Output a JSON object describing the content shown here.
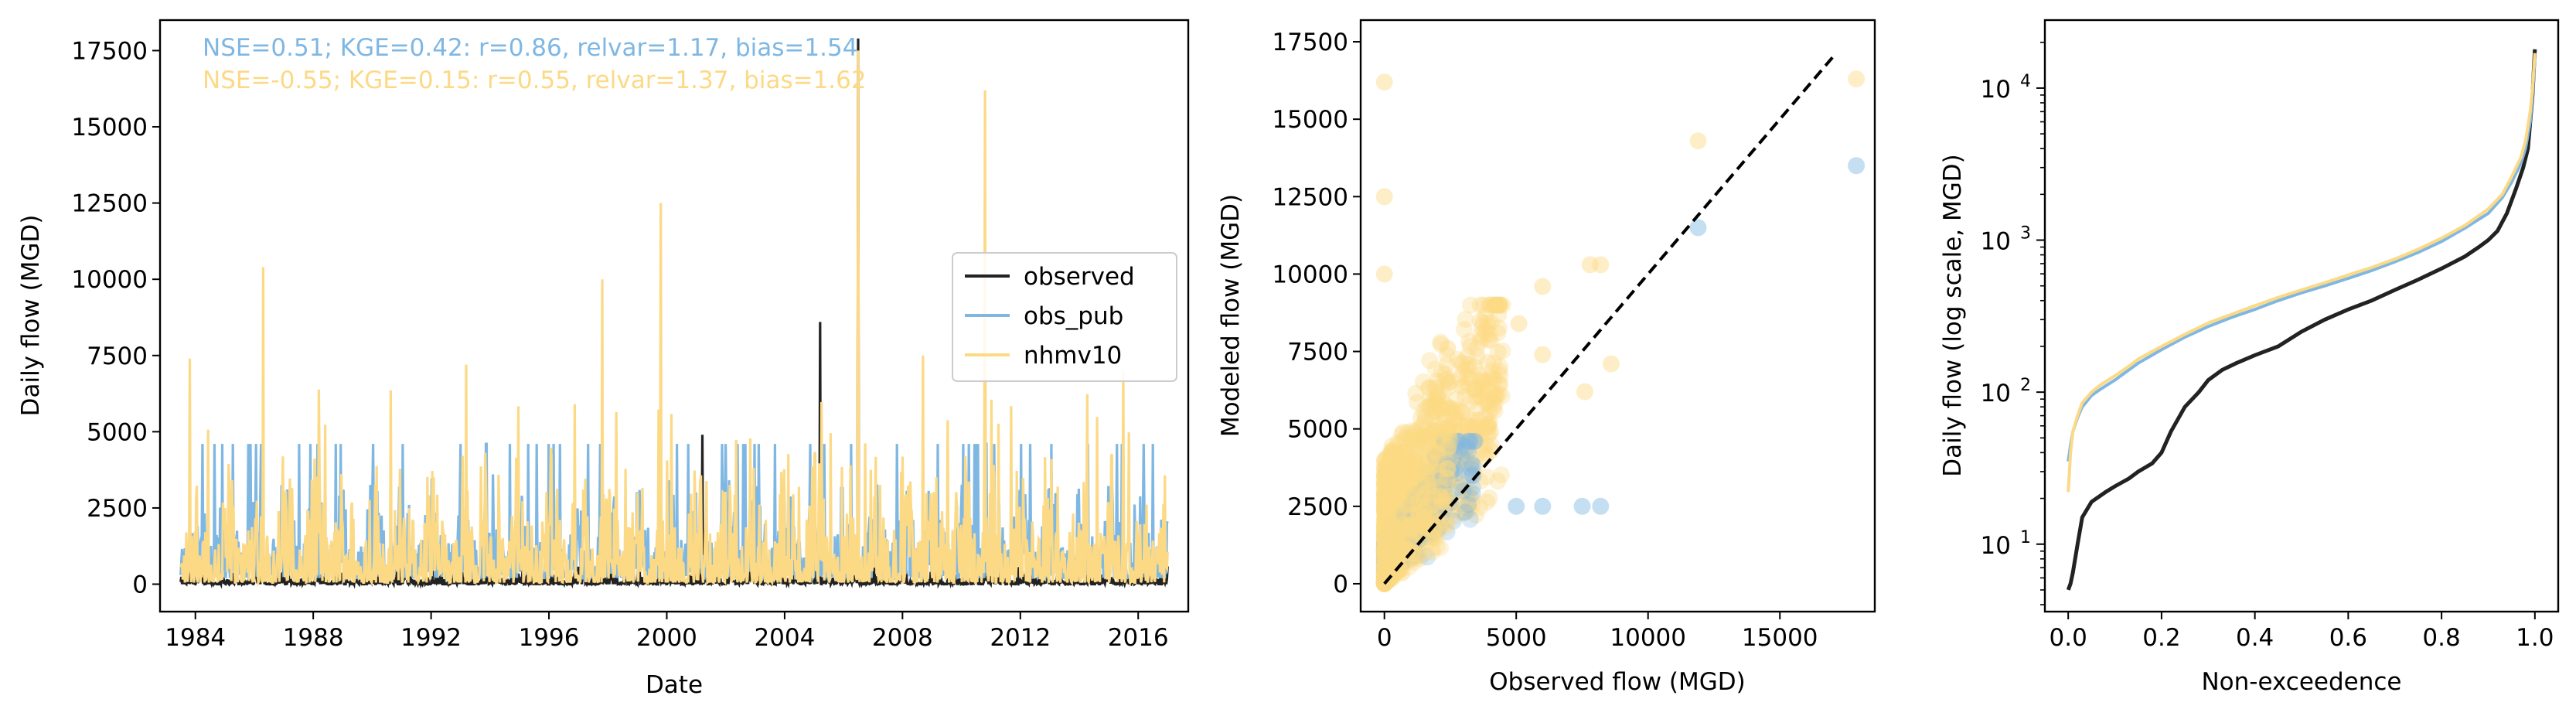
{
  "colors": {
    "observed": "#222222",
    "obs_pub": "#7fb7e3",
    "nhmv10": "#fcd985",
    "axis": "#000000",
    "one_to_one": "#000000"
  },
  "chart_data": [
    {
      "type": "line",
      "title": "",
      "xlabel": "Date",
      "ylabel": "Daily flow (MGD)",
      "xlim": [
        1982.8,
        2017.7
      ],
      "ylim": [
        -900,
        18500
      ],
      "x_ticks": [
        "1984",
        "1988",
        "1992",
        "1996",
        "2000",
        "2004",
        "2008",
        "2012",
        "2016"
      ],
      "y_ticks": [
        "0",
        "2500",
        "5000",
        "7500",
        "10000",
        "12500",
        "15000",
        "17500"
      ],
      "x_tick_values": [
        1984,
        1988,
        1992,
        1996,
        2000,
        2004,
        2008,
        2012,
        2016
      ],
      "y_tick_values": [
        0,
        2500,
        5000,
        7500,
        10000,
        12500,
        15000,
        17500
      ],
      "annotations": [
        {
          "text": "NSE=0.51; KGE=0.42: r=0.86, relvar=1.17, bias=1.54",
          "series": "obs_pub"
        },
        {
          "text": "NSE=-0.55; KGE=0.15: r=0.55, relvar=1.37, bias=1.62",
          "series": "nhmv10"
        }
      ],
      "legend": {
        "position": "center-right",
        "entries": [
          "observed",
          "obs_pub",
          "nhmv10"
        ]
      },
      "grid": false,
      "x_range": [
        1983.5,
        2017.0
      ],
      "series": [
        {
          "name": "observed",
          "typical_range": [
            0,
            400
          ],
          "peaks": [
            [
              2005.2,
              8600
            ],
            [
              2006.5,
              17900
            ],
            [
              2001.2,
              4900
            ]
          ]
        },
        {
          "name": "obs_pub",
          "typical_range": [
            200,
            2500
          ],
          "cap": 4600
        },
        {
          "name": "nhmv10",
          "typical_range": [
            50,
            3000
          ],
          "peaks": [
            [
              1983.8,
              7400
            ],
            [
              1986.3,
              10400
            ],
            [
              1999.8,
              12500
            ],
            [
              2006.5,
              17500
            ],
            [
              2010.8,
              16200
            ],
            [
              1997.8,
              10000
            ],
            [
              1993.2,
              7200
            ],
            [
              2008.7,
              7500
            ],
            [
              2015.5,
              7000
            ]
          ]
        }
      ]
    },
    {
      "type": "scatter",
      "title": "",
      "xlabel": "Observed flow (MGD)",
      "ylabel": "Modeled flow (MGD)",
      "xlim": [
        -900,
        18600
      ],
      "ylim": [
        -900,
        18200
      ],
      "x_ticks": [
        "0",
        "5000",
        "10000",
        "15000"
      ],
      "y_ticks": [
        "0",
        "2500",
        "5000",
        "7500",
        "10000",
        "12500",
        "15000",
        "17500"
      ],
      "x_tick_values": [
        0,
        5000,
        10000,
        15000
      ],
      "y_tick_values": [
        0,
        2500,
        5000,
        7500,
        10000,
        12500,
        15000,
        17500
      ],
      "one_to_one_line": [
        [
          0,
          0
        ],
        [
          17000,
          17000
        ]
      ],
      "grid": false,
      "series": [
        {
          "name": "obs_pub",
          "outliers": [
            [
              17900,
              13500
            ],
            [
              11900,
              11500
            ],
            [
              7500,
              2500
            ],
            [
              8200,
              2500
            ],
            [
              6000,
              2500
            ],
            [
              5000,
              2500
            ]
          ]
        },
        {
          "name": "nhmv10",
          "outliers": [
            [
              0,
              16200
            ],
            [
              17900,
              16300
            ],
            [
              11900,
              14300
            ],
            [
              0,
              12500
            ],
            [
              8200,
              10300
            ],
            [
              7800,
              10300
            ],
            [
              6000,
              9600
            ],
            [
              8600,
              7100
            ],
            [
              5100,
              8400
            ],
            [
              2400,
              7600
            ],
            [
              0,
              10000
            ],
            [
              6000,
              7400
            ],
            [
              7600,
              6200
            ]
          ]
        }
      ]
    },
    {
      "type": "line",
      "title": "",
      "xlabel": "Non-exceedence",
      "ylabel": "Daily flow (log scale, MGD)",
      "log_y": true,
      "xlim": [
        -0.05,
        1.05
      ],
      "ylim": [
        3.6,
        28000
      ],
      "x_ticks": [
        "0.0",
        "0.2",
        "0.4",
        "0.6",
        "0.8",
        "1.0"
      ],
      "x_tick_values": [
        0.0,
        0.2,
        0.4,
        0.6,
        0.8,
        1.0
      ],
      "y_ticks": [
        {
          "base": "10",
          "exp": "1",
          "value": 10
        },
        {
          "base": "10",
          "exp": "2",
          "value": 100
        },
        {
          "base": "10",
          "exp": "3",
          "value": 1000
        },
        {
          "base": "10",
          "exp": "4",
          "value": 10000
        }
      ],
      "grid": false,
      "series": [
        {
          "name": "observed",
          "x": [
            0.0,
            0.005,
            0.01,
            0.02,
            0.03,
            0.05,
            0.08,
            0.1,
            0.13,
            0.15,
            0.18,
            0.2,
            0.22,
            0.25,
            0.28,
            0.3,
            0.33,
            0.36,
            0.4,
            0.45,
            0.5,
            0.55,
            0.6,
            0.65,
            0.7,
            0.75,
            0.8,
            0.85,
            0.88,
            0.9,
            0.92,
            0.94,
            0.96,
            0.975,
            0.985,
            0.99,
            0.995,
            1.0
          ],
          "y": [
            5,
            5.5,
            6.5,
            10,
            15,
            19,
            22,
            24,
            27,
            30,
            34,
            40,
            55,
            80,
            100,
            120,
            140,
            155,
            175,
            200,
            250,
            300,
            350,
            400,
            470,
            550,
            650,
            780,
            900,
            1000,
            1150,
            1500,
            2200,
            3000,
            4000,
            6000,
            9000,
            18000
          ]
        },
        {
          "name": "obs_pub",
          "x": [
            0.0,
            0.005,
            0.01,
            0.02,
            0.03,
            0.05,
            0.07,
            0.1,
            0.13,
            0.15,
            0.2,
            0.25,
            0.3,
            0.35,
            0.4,
            0.45,
            0.5,
            0.55,
            0.6,
            0.65,
            0.7,
            0.75,
            0.8,
            0.85,
            0.9,
            0.93,
            0.95,
            0.97,
            0.98,
            0.99,
            0.995,
            1.0
          ],
          "y": [
            35,
            45,
            55,
            68,
            80,
            95,
            105,
            120,
            140,
            155,
            190,
            230,
            270,
            310,
            350,
            400,
            450,
            500,
            560,
            630,
            720,
            830,
            980,
            1200,
            1500,
            1900,
            2400,
            3200,
            4000,
            6000,
            9000,
            16000
          ]
        },
        {
          "name": "nhmv10",
          "x": [
            0.0,
            0.005,
            0.01,
            0.02,
            0.03,
            0.05,
            0.07,
            0.1,
            0.13,
            0.15,
            0.2,
            0.25,
            0.3,
            0.35,
            0.4,
            0.45,
            0.5,
            0.55,
            0.6,
            0.65,
            0.7,
            0.75,
            0.8,
            0.85,
            0.9,
            0.93,
            0.95,
            0.97,
            0.98,
            0.99,
            0.995,
            1.0
          ],
          "y": [
            22,
            40,
            55,
            70,
            85,
            100,
            112,
            128,
            148,
            165,
            200,
            240,
            285,
            325,
            370,
            420,
            470,
            525,
            590,
            660,
            750,
            870,
            1030,
            1250,
            1600,
            2000,
            2600,
            3500,
            4500,
            7000,
            10000,
            17000
          ]
        }
      ]
    }
  ]
}
